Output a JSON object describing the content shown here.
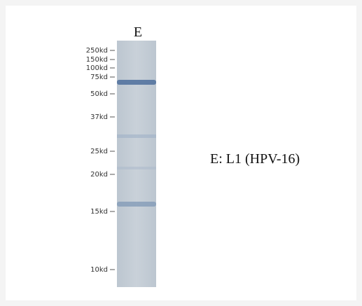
{
  "lane_label": "E",
  "markers": [
    "250kd",
    "150kd",
    "100kd",
    "75kd",
    "50kd",
    "37kd",
    "25kd",
    "20kd",
    "15kd",
    "10kd"
  ],
  "legend": "E:  L1 (HPV-16)"
}
